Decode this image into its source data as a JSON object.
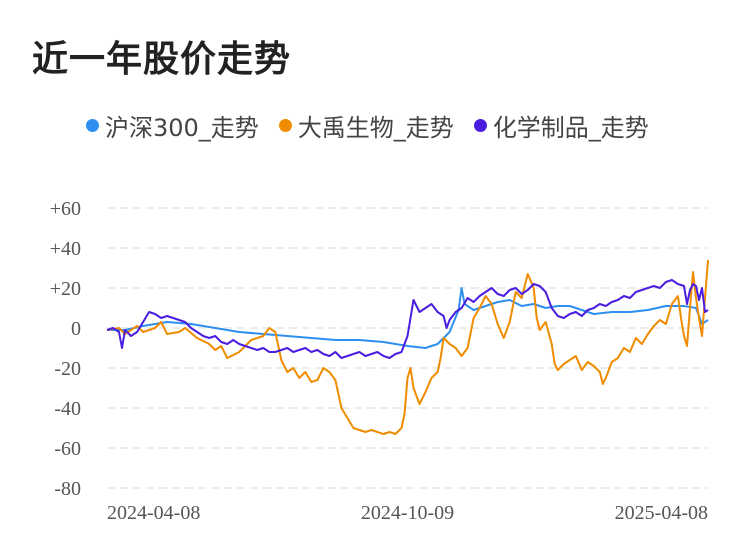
{
  "chart_data": {
    "type": "line",
    "title": "近一年股价走势",
    "x_tick_labels": [
      "2024-04-08",
      "2024-10-09",
      "2025-04-08"
    ],
    "y_tick_labels": [
      "+60",
      "+40",
      "+20",
      "0",
      "-20",
      "-40",
      "-60",
      "-80"
    ],
    "ylim": [
      -80,
      60
    ],
    "xlim": [
      0,
      1
    ],
    "grid": true,
    "legend_position": "top-left",
    "series": [
      {
        "name": "沪深300_走势",
        "color": "#2e8ff0",
        "points": [
          [
            0.0,
            -1
          ],
          [
            0.03,
            -1
          ],
          [
            0.06,
            1
          ],
          [
            0.1,
            3
          ],
          [
            0.14,
            2
          ],
          [
            0.18,
            0
          ],
          [
            0.22,
            -2
          ],
          [
            0.26,
            -3
          ],
          [
            0.3,
            -4
          ],
          [
            0.34,
            -5
          ],
          [
            0.38,
            -6
          ],
          [
            0.42,
            -6
          ],
          [
            0.46,
            -7
          ],
          [
            0.5,
            -9
          ],
          [
            0.53,
            -10
          ],
          [
            0.55,
            -8
          ],
          [
            0.57,
            -2
          ],
          [
            0.585,
            9
          ],
          [
            0.59,
            20
          ],
          [
            0.595,
            12
          ],
          [
            0.61,
            9
          ],
          [
            0.63,
            11
          ],
          [
            0.65,
            13
          ],
          [
            0.67,
            14
          ],
          [
            0.69,
            11
          ],
          [
            0.71,
            12
          ],
          [
            0.73,
            10
          ],
          [
            0.75,
            11
          ],
          [
            0.77,
            11
          ],
          [
            0.79,
            9
          ],
          [
            0.81,
            7
          ],
          [
            0.84,
            8
          ],
          [
            0.87,
            8
          ],
          [
            0.9,
            9
          ],
          [
            0.93,
            11
          ],
          [
            0.96,
            11
          ],
          [
            0.98,
            10
          ],
          [
            0.99,
            2
          ],
          [
            1.0,
            4
          ]
        ]
      },
      {
        "name": "大禹生物_走势",
        "color": "#f08c00",
        "points": [
          [
            0.0,
            -1
          ],
          [
            0.02,
            0
          ],
          [
            0.03,
            -3
          ],
          [
            0.05,
            1
          ],
          [
            0.06,
            -2
          ],
          [
            0.08,
            0
          ],
          [
            0.09,
            3
          ],
          [
            0.1,
            -3
          ],
          [
            0.12,
            -2
          ],
          [
            0.13,
            0
          ],
          [
            0.15,
            -5
          ],
          [
            0.17,
            -8
          ],
          [
            0.18,
            -11
          ],
          [
            0.19,
            -9
          ],
          [
            0.2,
            -15
          ],
          [
            0.22,
            -12
          ],
          [
            0.24,
            -6
          ],
          [
            0.26,
            -4
          ],
          [
            0.27,
            0
          ],
          [
            0.28,
            -2
          ],
          [
            0.29,
            -16
          ],
          [
            0.3,
            -22
          ],
          [
            0.31,
            -20
          ],
          [
            0.32,
            -25
          ],
          [
            0.33,
            -22
          ],
          [
            0.34,
            -27
          ],
          [
            0.35,
            -26
          ],
          [
            0.36,
            -20
          ],
          [
            0.37,
            -22
          ],
          [
            0.38,
            -26
          ],
          [
            0.39,
            -40
          ],
          [
            0.4,
            -45
          ],
          [
            0.41,
            -50
          ],
          [
            0.42,
            -51
          ],
          [
            0.43,
            -52
          ],
          [
            0.44,
            -51
          ],
          [
            0.45,
            -52
          ],
          [
            0.46,
            -53
          ],
          [
            0.47,
            -52
          ],
          [
            0.48,
            -53
          ],
          [
            0.49,
            -50
          ],
          [
            0.495,
            -43
          ],
          [
            0.5,
            -25
          ],
          [
            0.505,
            -20
          ],
          [
            0.51,
            -30
          ],
          [
            0.52,
            -38
          ],
          [
            0.53,
            -32
          ],
          [
            0.54,
            -25
          ],
          [
            0.55,
            -22
          ],
          [
            0.555,
            -15
          ],
          [
            0.56,
            -5
          ],
          [
            0.57,
            -8
          ],
          [
            0.58,
            -10
          ],
          [
            0.59,
            -14
          ],
          [
            0.6,
            -10
          ],
          [
            0.61,
            5
          ],
          [
            0.62,
            10
          ],
          [
            0.63,
            16
          ],
          [
            0.64,
            12
          ],
          [
            0.65,
            2
          ],
          [
            0.66,
            -5
          ],
          [
            0.67,
            3
          ],
          [
            0.68,
            18
          ],
          [
            0.69,
            15
          ],
          [
            0.7,
            27
          ],
          [
            0.71,
            20
          ],
          [
            0.715,
            5
          ],
          [
            0.72,
            -1
          ],
          [
            0.73,
            3
          ],
          [
            0.74,
            -8
          ],
          [
            0.745,
            -18
          ],
          [
            0.75,
            -21
          ],
          [
            0.76,
            -18
          ],
          [
            0.77,
            -16
          ],
          [
            0.78,
            -14
          ],
          [
            0.79,
            -21
          ],
          [
            0.8,
            -17
          ],
          [
            0.81,
            -19
          ],
          [
            0.82,
            -22
          ],
          [
            0.825,
            -28
          ],
          [
            0.83,
            -25
          ],
          [
            0.84,
            -17
          ],
          [
            0.85,
            -15
          ],
          [
            0.86,
            -10
          ],
          [
            0.87,
            -12
          ],
          [
            0.88,
            -5
          ],
          [
            0.89,
            -8
          ],
          [
            0.9,
            -3
          ],
          [
            0.91,
            1
          ],
          [
            0.92,
            4
          ],
          [
            0.93,
            2
          ],
          [
            0.94,
            12
          ],
          [
            0.95,
            16
          ],
          [
            0.955,
            5
          ],
          [
            0.96,
            -4
          ],
          [
            0.965,
            -9
          ],
          [
            0.97,
            10
          ],
          [
            0.975,
            28
          ],
          [
            0.98,
            15
          ],
          [
            0.985,
            5
          ],
          [
            0.99,
            -4
          ],
          [
            0.995,
            15
          ],
          [
            1.0,
            34
          ]
        ]
      },
      {
        "name": "化学制品_走势",
        "color": "#4b1de0",
        "points": [
          [
            0.0,
            -1
          ],
          [
            0.01,
            0
          ],
          [
            0.02,
            -2
          ],
          [
            0.025,
            -10
          ],
          [
            0.03,
            -1
          ],
          [
            0.04,
            -4
          ],
          [
            0.05,
            -2
          ],
          [
            0.06,
            3
          ],
          [
            0.07,
            8
          ],
          [
            0.08,
            7
          ],
          [
            0.09,
            5
          ],
          [
            0.1,
            6
          ],
          [
            0.11,
            5
          ],
          [
            0.12,
            4
          ],
          [
            0.13,
            3
          ],
          [
            0.14,
            0
          ],
          [
            0.15,
            -2
          ],
          [
            0.16,
            -4
          ],
          [
            0.17,
            -5
          ],
          [
            0.18,
            -4
          ],
          [
            0.19,
            -7
          ],
          [
            0.2,
            -8
          ],
          [
            0.21,
            -6
          ],
          [
            0.22,
            -8
          ],
          [
            0.23,
            -9
          ],
          [
            0.24,
            -10
          ],
          [
            0.25,
            -11
          ],
          [
            0.26,
            -10
          ],
          [
            0.27,
            -12
          ],
          [
            0.28,
            -12
          ],
          [
            0.29,
            -11
          ],
          [
            0.3,
            -10
          ],
          [
            0.31,
            -12
          ],
          [
            0.32,
            -11
          ],
          [
            0.33,
            -10
          ],
          [
            0.34,
            -12
          ],
          [
            0.35,
            -11
          ],
          [
            0.36,
            -13
          ],
          [
            0.37,
            -14
          ],
          [
            0.38,
            -12
          ],
          [
            0.39,
            -15
          ],
          [
            0.4,
            -14
          ],
          [
            0.41,
            -13
          ],
          [
            0.42,
            -12
          ],
          [
            0.43,
            -14
          ],
          [
            0.44,
            -13
          ],
          [
            0.45,
            -12
          ],
          [
            0.46,
            -14
          ],
          [
            0.47,
            -15
          ],
          [
            0.48,
            -13
          ],
          [
            0.49,
            -12
          ],
          [
            0.5,
            -4
          ],
          [
            0.505,
            5
          ],
          [
            0.51,
            14
          ],
          [
            0.52,
            8
          ],
          [
            0.53,
            10
          ],
          [
            0.54,
            12
          ],
          [
            0.55,
            8
          ],
          [
            0.56,
            6
          ],
          [
            0.565,
            0
          ],
          [
            0.57,
            4
          ],
          [
            0.58,
            8
          ],
          [
            0.59,
            10
          ],
          [
            0.6,
            15
          ],
          [
            0.61,
            13
          ],
          [
            0.62,
            16
          ],
          [
            0.63,
            18
          ],
          [
            0.64,
            20
          ],
          [
            0.65,
            17
          ],
          [
            0.66,
            16
          ],
          [
            0.67,
            19
          ],
          [
            0.68,
            20
          ],
          [
            0.69,
            17
          ],
          [
            0.7,
            19
          ],
          [
            0.71,
            22
          ],
          [
            0.72,
            21
          ],
          [
            0.73,
            18
          ],
          [
            0.74,
            10
          ],
          [
            0.75,
            6
          ],
          [
            0.76,
            5
          ],
          [
            0.77,
            7
          ],
          [
            0.78,
            8
          ],
          [
            0.79,
            6
          ],
          [
            0.8,
            9
          ],
          [
            0.81,
            10
          ],
          [
            0.82,
            12
          ],
          [
            0.83,
            11
          ],
          [
            0.84,
            13
          ],
          [
            0.85,
            14
          ],
          [
            0.86,
            16
          ],
          [
            0.87,
            15
          ],
          [
            0.88,
            18
          ],
          [
            0.89,
            19
          ],
          [
            0.9,
            20
          ],
          [
            0.91,
            21
          ],
          [
            0.92,
            20
          ],
          [
            0.93,
            23
          ],
          [
            0.94,
            24
          ],
          [
            0.95,
            22
          ],
          [
            0.96,
            21
          ],
          [
            0.965,
            12
          ],
          [
            0.97,
            19
          ],
          [
            0.975,
            22
          ],
          [
            0.98,
            21
          ],
          [
            0.985,
            14
          ],
          [
            0.99,
            20
          ],
          [
            0.995,
            8
          ],
          [
            1.0,
            9
          ]
        ]
      }
    ]
  }
}
